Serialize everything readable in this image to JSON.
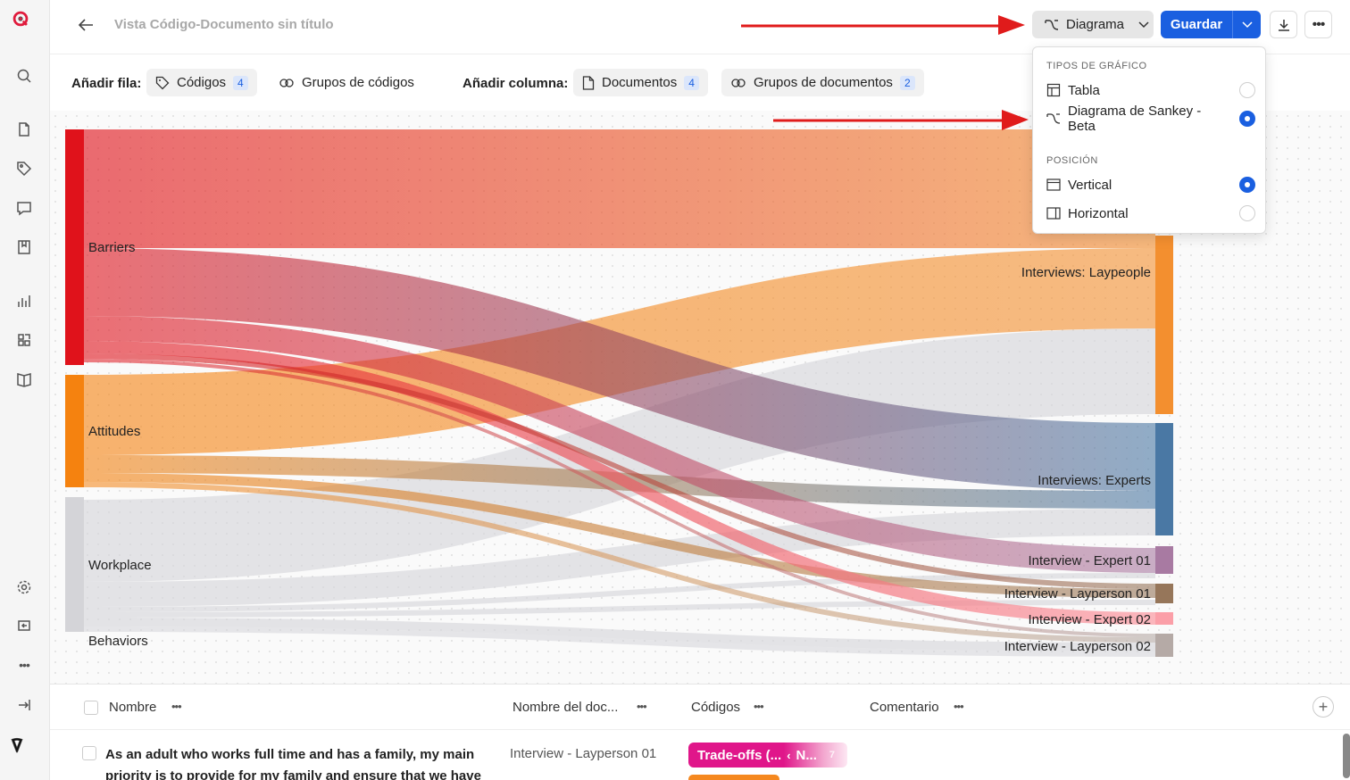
{
  "header": {
    "title": "Vista Código-Documento sin título",
    "diagram_label": "Diagrama",
    "save_label": "Guardar"
  },
  "rowbar": {
    "add_row_label": "Añadir fila:",
    "codes_label": "Códigos",
    "codes_count": "4",
    "code_groups_label": "Grupos de códigos",
    "add_column_label": "Añadir columna:",
    "documents_label": "Documentos",
    "documents_count": "4",
    "document_groups_label": "Grupos de documentos",
    "document_groups_count": "2"
  },
  "menu": {
    "chart_types_heading": "TIPOS DE GRÁFICO",
    "chart_types": [
      {
        "label": "Tabla",
        "selected": false
      },
      {
        "label": "Diagrama de Sankey - Beta",
        "selected": true
      }
    ],
    "position_heading": "POSICIÓN",
    "positions": [
      {
        "label": "Vertical",
        "selected": true
      },
      {
        "label": "Horizontal",
        "selected": false
      }
    ]
  },
  "chart_data": {
    "type": "sankey",
    "sources": [
      "Barriers",
      "Attitudes",
      "Workplace",
      "Behaviors"
    ],
    "targets": [
      "Interviews: Laypeople",
      "Interviews: Experts",
      "Interview - Expert 01",
      "Interview - Layperson 01",
      "Interview - Expert 02",
      "Interview - Layperson 02"
    ],
    "source_colors": [
      "#e0121b",
      "#f5820f",
      "#d4d4d8",
      "#d4d4d8"
    ],
    "target_colors": [
      "#f38f2f",
      "#4a78a4",
      "#a87aa2",
      "#96765a",
      "#fb9fa8",
      "#b5aaa6"
    ]
  },
  "table": {
    "columns": [
      {
        "label": "Nombre"
      },
      {
        "label": "Nombre del doc..."
      },
      {
        "label": "Códigos"
      },
      {
        "label": "Comentario"
      }
    ],
    "rows": [
      {
        "name": "As an adult who works full time and has a family, my main priority is to provide for my family and ensure that we have a",
        "document": "Interview - Layperson 01",
        "code_chip": "Trade-offs (...",
        "code_chip_next": "N...",
        "code_chip_count": "7"
      }
    ]
  }
}
